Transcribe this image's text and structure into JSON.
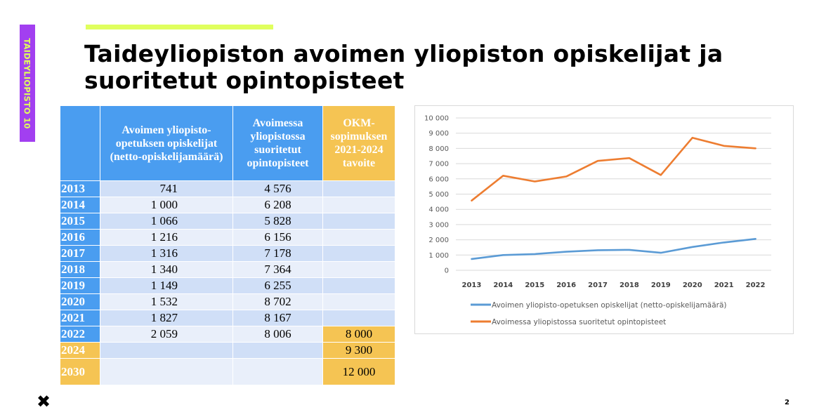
{
  "sidebar_label": "TAIDEYLIOPISTO 10",
  "title": "Taideyliopiston avoimen yliopiston opiskelijat ja suoritetut opintopisteet",
  "colors": {
    "sidebar_bg": "#a23ff0",
    "sidebar_text": "#e1ff5a",
    "accent_bar": "#e0ff5e",
    "table_header": "#4a9df0",
    "table_goal": "#f5c453",
    "series_students": "#5b9bd5",
    "series_credits": "#ed7d31"
  },
  "table": {
    "headers": [
      "",
      "Avoimen yliopisto-opetuksen opiskelijat (netto-opiskelijamäärä)",
      "Avoimessa yliopistossa suoritetut opintopisteet",
      "OKM-sopimuksen 2021-2024 tavoite"
    ],
    "rows": [
      {
        "year": "2013",
        "students": "741",
        "credits": "4 576",
        "goal": ""
      },
      {
        "year": "2014",
        "students": "1 000",
        "credits": "6 208",
        "goal": ""
      },
      {
        "year": "2015",
        "students": "1 066",
        "credits": "5 828",
        "goal": ""
      },
      {
        "year": "2016",
        "students": "1 216",
        "credits": "6 156",
        "goal": ""
      },
      {
        "year": "2017",
        "students": "1 316",
        "credits": "7 178",
        "goal": ""
      },
      {
        "year": "2018",
        "students": "1 340",
        "credits": "7 364",
        "goal": ""
      },
      {
        "year": "2019",
        "students": "1 149",
        "credits": "6 255",
        "goal": ""
      },
      {
        "year": "2020",
        "students": "1 532",
        "credits": "8 702",
        "goal": ""
      },
      {
        "year": "2021",
        "students": "1 827",
        "credits": "8 167",
        "goal": ""
      },
      {
        "year": "2022",
        "students": "2 059",
        "credits": "8 006",
        "goal": "8 000"
      },
      {
        "year": "2024",
        "students": "",
        "credits": "",
        "goal": "9 300"
      },
      {
        "year": "2030",
        "students": "",
        "credits": "",
        "goal": "12 000"
      }
    ]
  },
  "chart_data": {
    "type": "line",
    "title": "",
    "xlabel": "",
    "ylabel": "",
    "categories": [
      "2013",
      "2014",
      "2015",
      "2016",
      "2017",
      "2018",
      "2019",
      "2020",
      "2021",
      "2022"
    ],
    "ylim": [
      0,
      10000
    ],
    "yticks": [
      0,
      1000,
      2000,
      3000,
      4000,
      5000,
      6000,
      7000,
      8000,
      9000,
      10000
    ],
    "ytick_labels": [
      "0",
      "1 000",
      "2 000",
      "3 000",
      "4 000",
      "5 000",
      "6 000",
      "7 000",
      "8 000",
      "9 000",
      "10 000"
    ],
    "grid": true,
    "legend_position": "bottom",
    "series": [
      {
        "name": "Avoimen yliopisto-opetuksen opiskelijat (netto-opiskelijamäärä)",
        "color": "#5b9bd5",
        "values": [
          741,
          1000,
          1066,
          1216,
          1316,
          1340,
          1149,
          1532,
          1827,
          2059
        ]
      },
      {
        "name": "Avoimessa yliopistossa suoritetut opintopisteet",
        "color": "#ed7d31",
        "values": [
          4576,
          6208,
          5828,
          6156,
          7178,
          7364,
          6255,
          8702,
          8167,
          8006
        ]
      }
    ]
  },
  "footer": {
    "close_symbol": "✖",
    "page_number": "2"
  }
}
